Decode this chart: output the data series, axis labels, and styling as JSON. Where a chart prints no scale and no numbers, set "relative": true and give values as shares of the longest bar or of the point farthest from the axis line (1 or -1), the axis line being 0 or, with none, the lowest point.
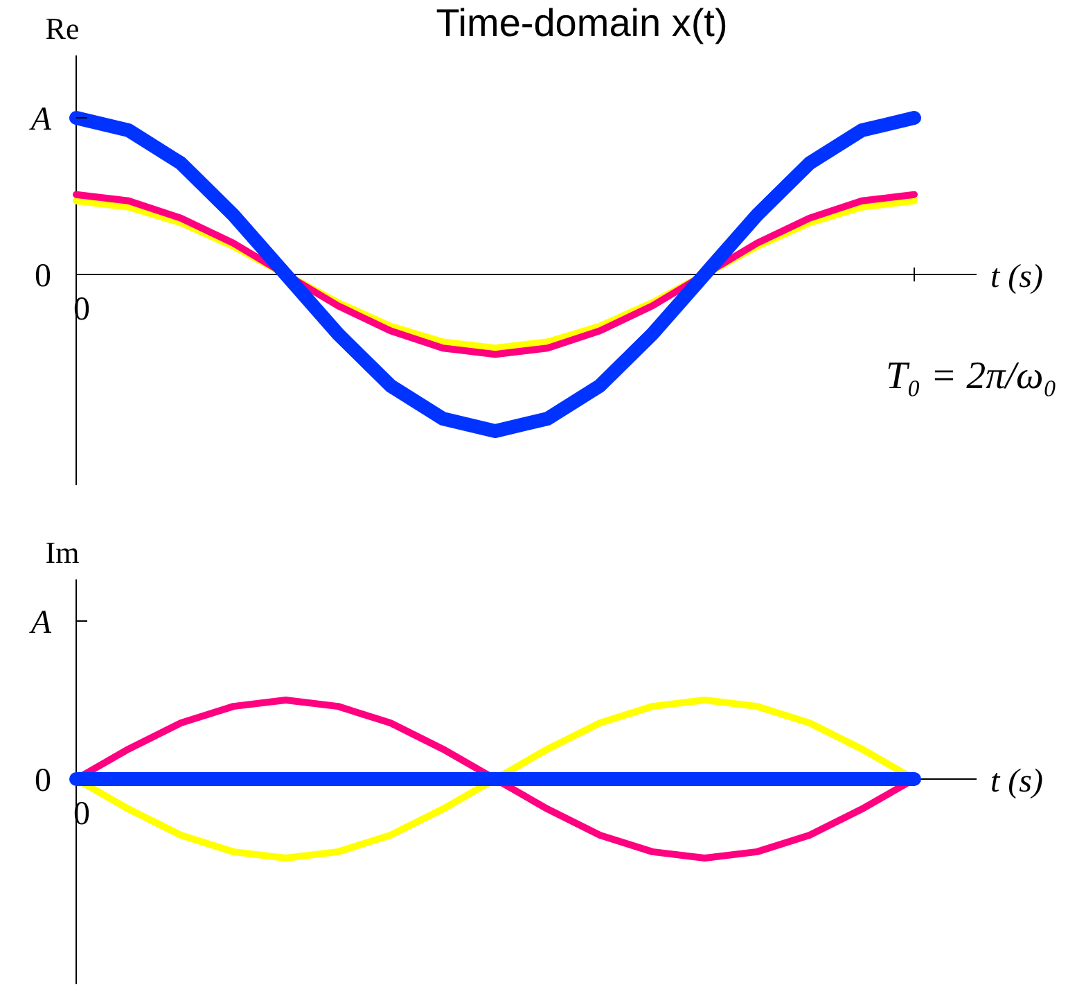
{
  "chart_data": [
    {
      "type": "line",
      "title": "Time-domain x(t)",
      "ylabel": "Re",
      "xlabel": "t (s)",
      "relative": true,
      "categories": [
        null,
        null,
        null,
        null,
        null,
        null,
        null,
        null,
        null,
        null,
        null,
        null,
        null,
        null,
        null,
        null,
        null
      ],
      "series": [
        {
          "color": "#ffff00",
          "values": [
            0.47,
            0.43,
            0.33,
            0.18,
            0,
            -0.18,
            -0.33,
            -0.43,
            -0.47,
            -0.43,
            -0.33,
            -0.18,
            0,
            0.18,
            0.33,
            0.43,
            0.47
          ]
        },
        {
          "color": "#ff0080",
          "values": [
            0.51,
            0.47,
            0.36,
            0.2,
            0,
            -0.2,
            -0.36,
            -0.47,
            -0.51,
            -0.47,
            -0.36,
            -0.2,
            0,
            0.2,
            0.36,
            0.47,
            0.51
          ]
        },
        {
          "color": "#0033ff",
          "values": [
            1,
            0.92,
            0.71,
            0.38,
            0,
            -0.38,
            -0.71,
            -0.92,
            -1,
            -0.92,
            -0.71,
            -0.38,
            0,
            0.38,
            0.71,
            0.92,
            1
          ]
        }
      ],
      "annotations": [
        "A",
        "0",
        "T₀ = 2π/ω₀",
        "0"
      ],
      "grid": false,
      "marker": "none",
      "line_style": "solid"
    },
    {
      "type": "line",
      "ylabel": "Im",
      "xlabel": "t (s)",
      "relative": true,
      "categories": [
        null,
        null,
        null,
        null,
        null,
        null,
        null,
        null,
        null,
        null,
        null,
        null,
        null,
        null,
        null,
        null,
        null
      ],
      "series": [
        {
          "color": "#ffff00",
          "values": [
            0,
            -0.38,
            -0.71,
            -0.92,
            -1,
            -0.92,
            -0.71,
            -0.38,
            0,
            0.38,
            0.71,
            0.92,
            1,
            0.92,
            0.71,
            0.38,
            0
          ]
        },
        {
          "color": "#ff0080",
          "values": [
            0,
            0.38,
            0.71,
            0.92,
            1,
            0.92,
            0.71,
            0.38,
            0,
            -0.38,
            -0.71,
            -0.92,
            -1,
            -0.92,
            -0.71,
            -0.38,
            0
          ]
        },
        {
          "color": "#0033ff",
          "values": [
            0,
            0,
            0,
            0,
            0,
            0,
            0,
            0,
            0,
            0,
            0,
            0,
            0,
            0,
            0,
            0,
            0
          ]
        }
      ],
      "annotations": [
        "A",
        "0",
        "0"
      ],
      "grid": false,
      "marker": "none",
      "line_style": "solid"
    }
  ]
}
